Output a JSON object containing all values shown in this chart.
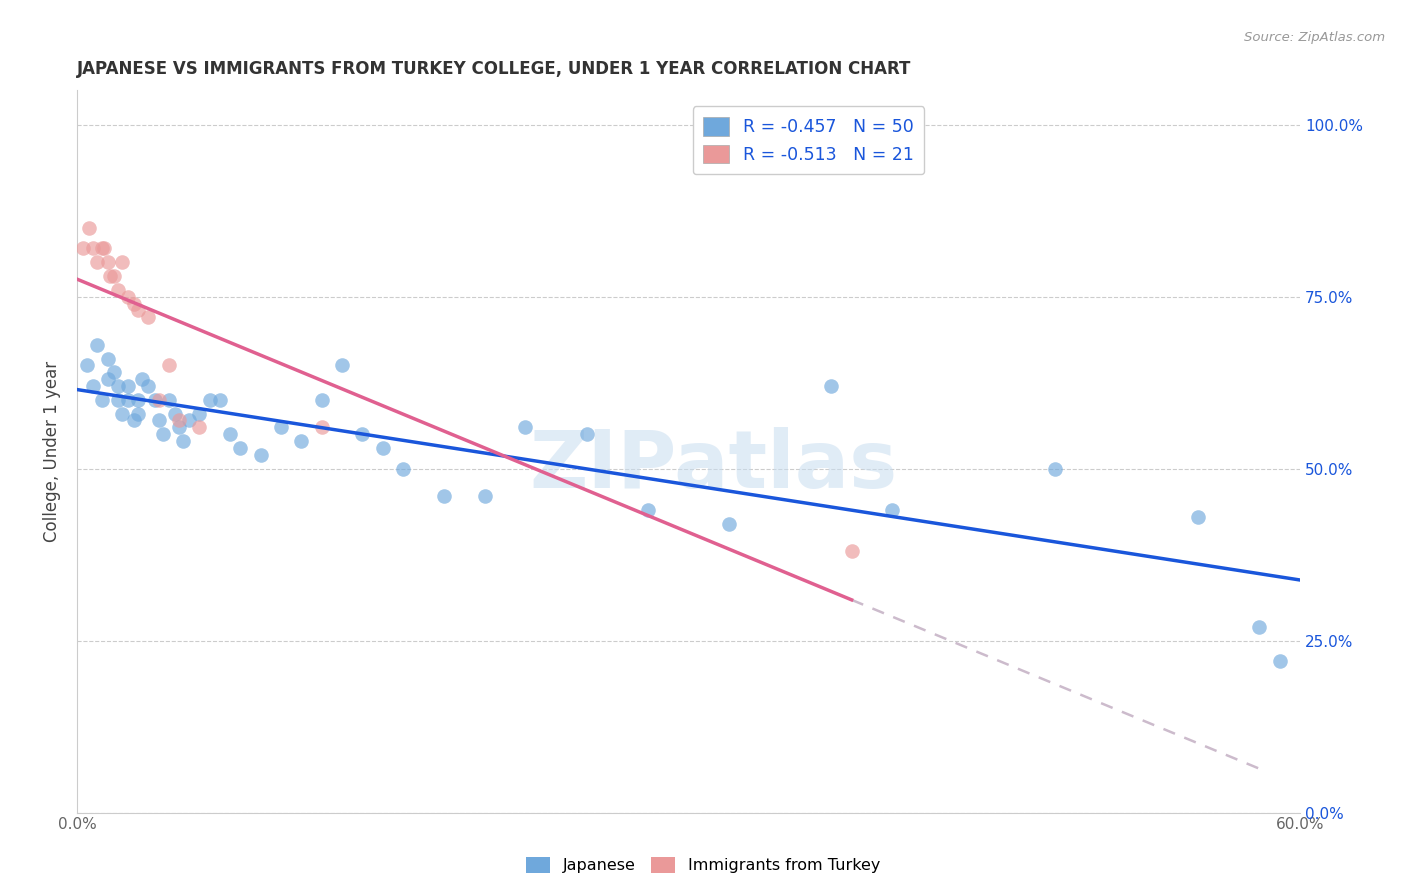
{
  "title": "JAPANESE VS IMMIGRANTS FROM TURKEY COLLEGE, UNDER 1 YEAR CORRELATION CHART",
  "source": "Source: ZipAtlas.com",
  "ylabel": "College, Under 1 year",
  "yticks": [
    "0.0%",
    "25.0%",
    "50.0%",
    "75.0%",
    "100.0%"
  ],
  "ytick_vals": [
    0.0,
    0.25,
    0.5,
    0.75,
    1.0
  ],
  "xlim": [
    0.0,
    0.6
  ],
  "ylim": [
    0.0,
    1.05
  ],
  "legend_r1": "R = -0.457",
  "legend_n1": "N = 50",
  "legend_r2": "R = -0.513",
  "legend_n2": "N = 21",
  "japanese_color": "#6fa8dc",
  "turkey_color": "#ea9999",
  "trend_japanese_color": "#1a56db",
  "trend_turkey_solid_color": "#e06090",
  "trend_turkey_dash_color": "#ccbbcc",
  "watermark_text": "ZIPatlas",
  "japanese_x": [
    0.005,
    0.008,
    0.01,
    0.012,
    0.015,
    0.015,
    0.018,
    0.02,
    0.02,
    0.022,
    0.025,
    0.025,
    0.028,
    0.03,
    0.03,
    0.032,
    0.035,
    0.038,
    0.04,
    0.042,
    0.045,
    0.048,
    0.05,
    0.052,
    0.055,
    0.06,
    0.065,
    0.07,
    0.075,
    0.08,
    0.09,
    0.1,
    0.11,
    0.12,
    0.13,
    0.14,
    0.15,
    0.16,
    0.18,
    0.2,
    0.22,
    0.25,
    0.28,
    0.32,
    0.37,
    0.4,
    0.48,
    0.55,
    0.58,
    0.59
  ],
  "japanese_y": [
    0.65,
    0.62,
    0.68,
    0.6,
    0.66,
    0.63,
    0.64,
    0.62,
    0.6,
    0.58,
    0.62,
    0.6,
    0.57,
    0.6,
    0.58,
    0.63,
    0.62,
    0.6,
    0.57,
    0.55,
    0.6,
    0.58,
    0.56,
    0.54,
    0.57,
    0.58,
    0.6,
    0.6,
    0.55,
    0.53,
    0.52,
    0.56,
    0.54,
    0.6,
    0.65,
    0.55,
    0.53,
    0.5,
    0.46,
    0.46,
    0.56,
    0.55,
    0.44,
    0.42,
    0.62,
    0.44,
    0.5,
    0.43,
    0.27,
    0.22
  ],
  "turkey_x": [
    0.003,
    0.006,
    0.008,
    0.01,
    0.012,
    0.013,
    0.015,
    0.016,
    0.018,
    0.02,
    0.022,
    0.025,
    0.028,
    0.03,
    0.035,
    0.04,
    0.045,
    0.05,
    0.06,
    0.12,
    0.38
  ],
  "turkey_y": [
    0.82,
    0.85,
    0.82,
    0.8,
    0.82,
    0.82,
    0.8,
    0.78,
    0.78,
    0.76,
    0.8,
    0.75,
    0.74,
    0.73,
    0.72,
    0.6,
    0.65,
    0.57,
    0.56,
    0.56,
    0.38
  ]
}
